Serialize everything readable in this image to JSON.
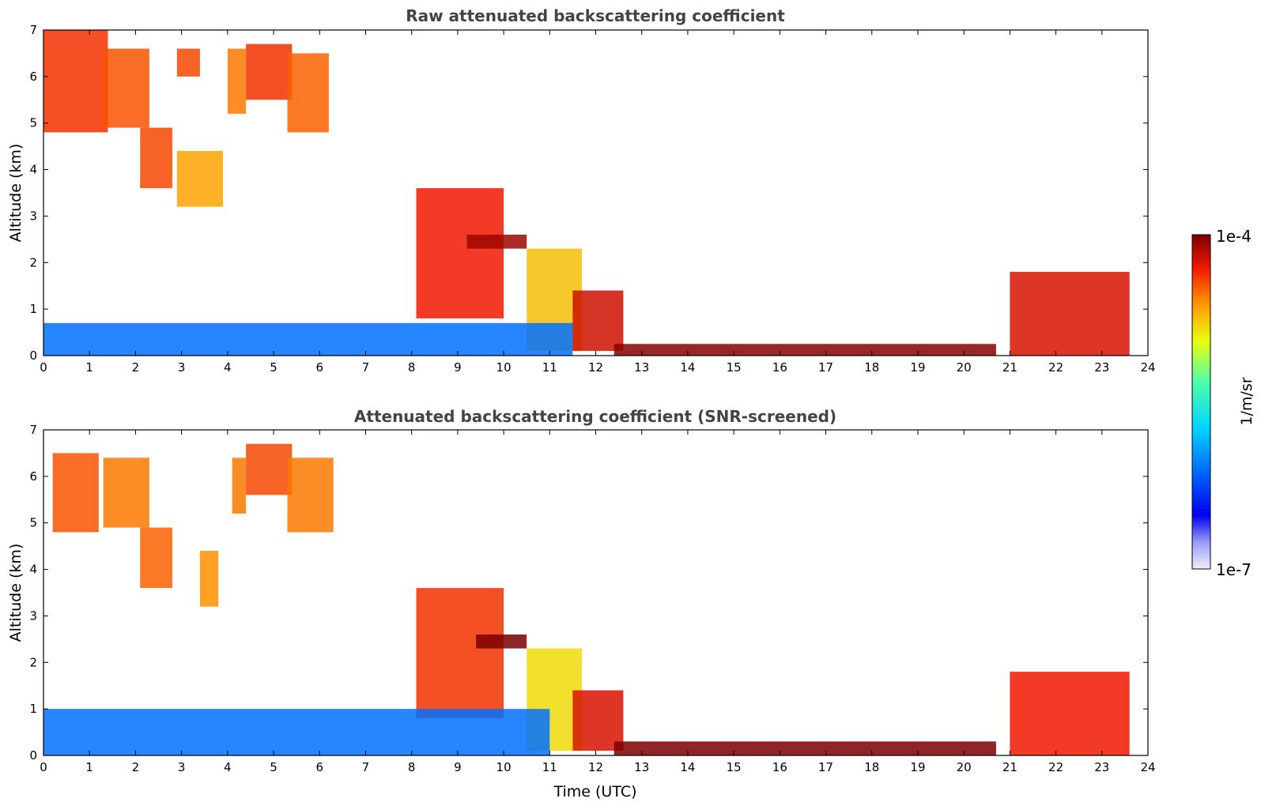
{
  "chart_data": [
    {
      "type": "heatmap",
      "title": "Raw attenuated backscattering coefficient",
      "xlabel": "",
      "ylabel": "Altitude (km)",
      "xlim": [
        0,
        24
      ],
      "ylim": [
        0,
        7
      ],
      "xticks": [
        "0",
        "1",
        "2",
        "3",
        "4",
        "5",
        "6",
        "7",
        "8",
        "9",
        "10",
        "11",
        "12",
        "13",
        "14",
        "15",
        "16",
        "17",
        "18",
        "19",
        "20",
        "21",
        "22",
        "23",
        "24"
      ],
      "yticks": [
        "0",
        "1",
        "2",
        "3",
        "4",
        "5",
        "6",
        "7"
      ],
      "grid": false,
      "features": [
        {
          "t0": 0.0,
          "t1": 1.4,
          "z0": 4.8,
          "z1": 7.0,
          "level": 0.88
        },
        {
          "t0": 1.3,
          "t1": 2.3,
          "z0": 4.9,
          "z1": 6.6,
          "level": 0.85
        },
        {
          "t0": 2.1,
          "t1": 2.8,
          "z0": 3.6,
          "z1": 4.9,
          "level": 0.86
        },
        {
          "t0": 2.9,
          "t1": 3.9,
          "z0": 3.2,
          "z1": 4.4,
          "level": 0.78
        },
        {
          "t0": 2.9,
          "t1": 3.4,
          "z0": 6.0,
          "z1": 6.6,
          "level": 0.86
        },
        {
          "t0": 4.0,
          "t1": 4.4,
          "z0": 5.2,
          "z1": 6.6,
          "level": 0.82
        },
        {
          "t0": 4.4,
          "t1": 5.4,
          "z0": 5.5,
          "z1": 6.7,
          "level": 0.88
        },
        {
          "t0": 5.3,
          "t1": 6.2,
          "z0": 4.8,
          "z1": 6.5,
          "level": 0.84
        },
        {
          "t0": 8.1,
          "t1": 10.0,
          "z0": 0.8,
          "z1": 3.6,
          "level": 0.9
        },
        {
          "t0": 9.2,
          "t1": 10.5,
          "z0": 2.3,
          "z1": 2.6,
          "level": 0.97
        },
        {
          "t0": 10.5,
          "t1": 11.7,
          "z0": 0.1,
          "z1": 2.3,
          "level": 0.75
        },
        {
          "t0": 11.5,
          "t1": 12.6,
          "z0": 0.1,
          "z1": 1.4,
          "level": 0.93
        },
        {
          "t0": 12.4,
          "t1": 20.7,
          "z0": 0.0,
          "z1": 0.25,
          "level": 0.99
        },
        {
          "t0": 21.0,
          "t1": 23.6,
          "z0": 0.0,
          "z1": 1.8,
          "level": 0.92
        },
        {
          "t0": 0.0,
          "t1": 11.5,
          "z0": 0.0,
          "z1": 0.7,
          "level": 0.3
        }
      ]
    },
    {
      "type": "heatmap",
      "title": "Attenuated backscattering coefficient (SNR-screened)",
      "xlabel": "Time (UTC)",
      "ylabel": "Altitude (km)",
      "xlim": [
        0,
        24
      ],
      "ylim": [
        0,
        7
      ],
      "xticks": [
        "0",
        "1",
        "2",
        "3",
        "4",
        "5",
        "6",
        "7",
        "8",
        "9",
        "10",
        "11",
        "12",
        "13",
        "14",
        "15",
        "16",
        "17",
        "18",
        "19",
        "20",
        "21",
        "22",
        "23",
        "24"
      ],
      "yticks": [
        "0",
        "1",
        "2",
        "3",
        "4",
        "5",
        "6",
        "7"
      ],
      "grid": false,
      "features": [
        {
          "t0": 0.2,
          "t1": 1.2,
          "z0": 4.8,
          "z1": 6.5,
          "level": 0.85
        },
        {
          "t0": 1.3,
          "t1": 2.3,
          "z0": 4.9,
          "z1": 6.4,
          "level": 0.82
        },
        {
          "t0": 2.1,
          "t1": 2.8,
          "z0": 3.6,
          "z1": 4.9,
          "level": 0.84
        },
        {
          "t0": 3.4,
          "t1": 3.8,
          "z0": 3.2,
          "z1": 4.4,
          "level": 0.8
        },
        {
          "t0": 4.1,
          "t1": 4.4,
          "z0": 5.2,
          "z1": 6.4,
          "level": 0.82
        },
        {
          "t0": 4.4,
          "t1": 5.4,
          "z0": 5.6,
          "z1": 6.7,
          "level": 0.86
        },
        {
          "t0": 5.3,
          "t1": 6.3,
          "z0": 4.8,
          "z1": 6.4,
          "level": 0.82
        },
        {
          "t0": 8.1,
          "t1": 10.0,
          "z0": 0.8,
          "z1": 3.6,
          "level": 0.88
        },
        {
          "t0": 9.4,
          "t1": 10.5,
          "z0": 2.3,
          "z1": 2.6,
          "level": 1.0
        },
        {
          "t0": 10.5,
          "t1": 11.7,
          "z0": 0.1,
          "z1": 2.3,
          "level": 0.72
        },
        {
          "t0": 11.5,
          "t1": 12.6,
          "z0": 0.1,
          "z1": 1.4,
          "level": 0.92
        },
        {
          "t0": 12.4,
          "t1": 20.7,
          "z0": 0.0,
          "z1": 0.3,
          "level": 1.0
        },
        {
          "t0": 21.0,
          "t1": 23.6,
          "z0": 0.0,
          "z1": 1.8,
          "level": 0.9
        },
        {
          "t0": 0.0,
          "t1": 11.0,
          "z0": 0.0,
          "z1": 1.0,
          "level": 0.3
        }
      ]
    }
  ],
  "colorbar": {
    "max_label": "1e-4",
    "min_label": "1e-7",
    "unit_label": "1/m/sr",
    "colormap": "jet"
  }
}
